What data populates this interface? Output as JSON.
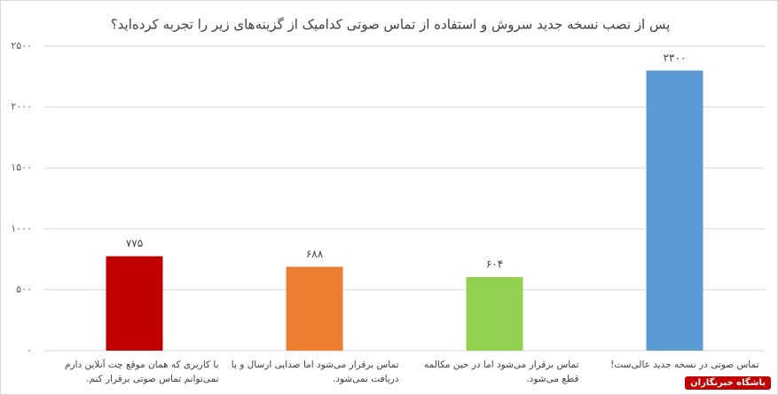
{
  "chart_data": {
    "type": "bar",
    "title": "پس از نصب نسخه جدید سروش و استفاده از تماس صوتی کدامیک از گزینه‌های زیر را تجربه کرده‌اید؟",
    "categories": [
      "با کاربری که همان موقع چت آنلاین دارم نمی‌توانم تماس صوتی برقرار کنم.",
      "تماس برقرار می‌شود اما صدایی ارسال و یا دریافت نمی‌شود.",
      "تماس برقرار می‌شود اما در حین مکالمه قطع می‌شود.",
      "تماس صوتی در نسخه جدید عالی‌ست!"
    ],
    "values": [
      775,
      688,
      604,
      2300
    ],
    "value_labels": [
      "۷۷۵",
      "۶۸۸",
      "۶۰۴",
      "۲۳۰۰"
    ],
    "colors": [
      "#c00000",
      "#ed7d31",
      "#92d050",
      "#5b9bd5"
    ],
    "ylim": [
      0,
      2500
    ],
    "yticks": [
      {
        "value": 0,
        "label": "۰"
      },
      {
        "value": 500,
        "label": "۵۰۰"
      },
      {
        "value": 1000,
        "label": "۱۰۰۰"
      },
      {
        "value": 1500,
        "label": "۱۵۰۰"
      },
      {
        "value": 2000,
        "label": "۲۰۰۰"
      },
      {
        "value": 2500,
        "label": "۲۵۰۰"
      }
    ],
    "grid": true,
    "watermark": "باشگاه خبرنگاران"
  }
}
